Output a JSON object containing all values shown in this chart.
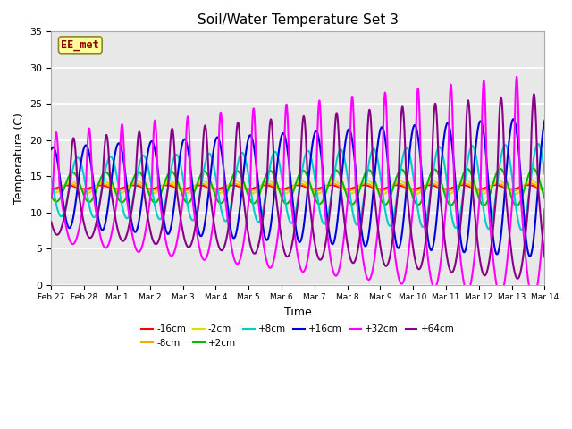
{
  "title": "Soil/Water Temperature Set 3",
  "xlabel": "Time",
  "ylabel": "Temperature (C)",
  "ylim": [
    0,
    35
  ],
  "annotation_text": "EE_met",
  "annotation_color": "#8B0000",
  "annotation_bg": "#FFFF99",
  "plot_bg": "#E8E8E8",
  "grid_color": "#FFFFFF",
  "series": [
    {
      "label": "-16cm",
      "color": "#FF0000",
      "base": 13.5,
      "amp": 0.25,
      "phase": 0.0,
      "growth": 0.08,
      "asymm": 1.0,
      "lw": 1.5
    },
    {
      "label": "-8cm",
      "color": "#FFA500",
      "base": 13.5,
      "amp": 0.45,
      "phase": 0.05,
      "growth": 0.08,
      "asymm": 1.0,
      "lw": 1.5
    },
    {
      "label": "-2cm",
      "color": "#DDDD00",
      "base": 13.5,
      "amp": 0.8,
      "phase": 0.1,
      "growth": 0.1,
      "asymm": 1.0,
      "lw": 1.5
    },
    {
      "label": "+2cm",
      "color": "#00BB00",
      "base": 13.5,
      "amp": 2.0,
      "phase": 0.15,
      "growth": 0.15,
      "asymm": 1.0,
      "lw": 1.5
    },
    {
      "label": "+8cm",
      "color": "#00CCCC",
      "base": 13.5,
      "amp": 4.0,
      "phase": 0.3,
      "growth": 0.25,
      "asymm": 1.0,
      "lw": 1.5
    },
    {
      "label": "+16cm",
      "color": "#0000DD",
      "base": 13.5,
      "amp": 5.5,
      "phase": 0.55,
      "growth": 0.38,
      "asymm": 1.0,
      "lw": 1.5
    },
    {
      "label": "+32cm",
      "color": "#FF00FF",
      "base": 13.5,
      "amp": 7.5,
      "phase": 0.8,
      "growth": 0.55,
      "asymm": 2.5,
      "lw": 1.5
    },
    {
      "label": "+64cm",
      "color": "#880088",
      "base": 13.5,
      "amp": 6.5,
      "phase": 1.3,
      "growth": 0.5,
      "asymm": 2.0,
      "lw": 1.5
    }
  ],
  "tick_labels": [
    "Feb 27",
    "Feb 28",
    "Mar 1",
    "Mar 2",
    "Mar 3",
    "Mar 4",
    "Mar 5",
    "Mar 6",
    "Mar 7",
    "Mar 8",
    "Mar 9",
    "Mar 10",
    "Mar 11",
    "Mar 12",
    "Mar 13",
    "Mar 14"
  ],
  "tick_positions": [
    0,
    1,
    2,
    3,
    4,
    5,
    6,
    7,
    8,
    9,
    10,
    11,
    12,
    13,
    14,
    15
  ]
}
